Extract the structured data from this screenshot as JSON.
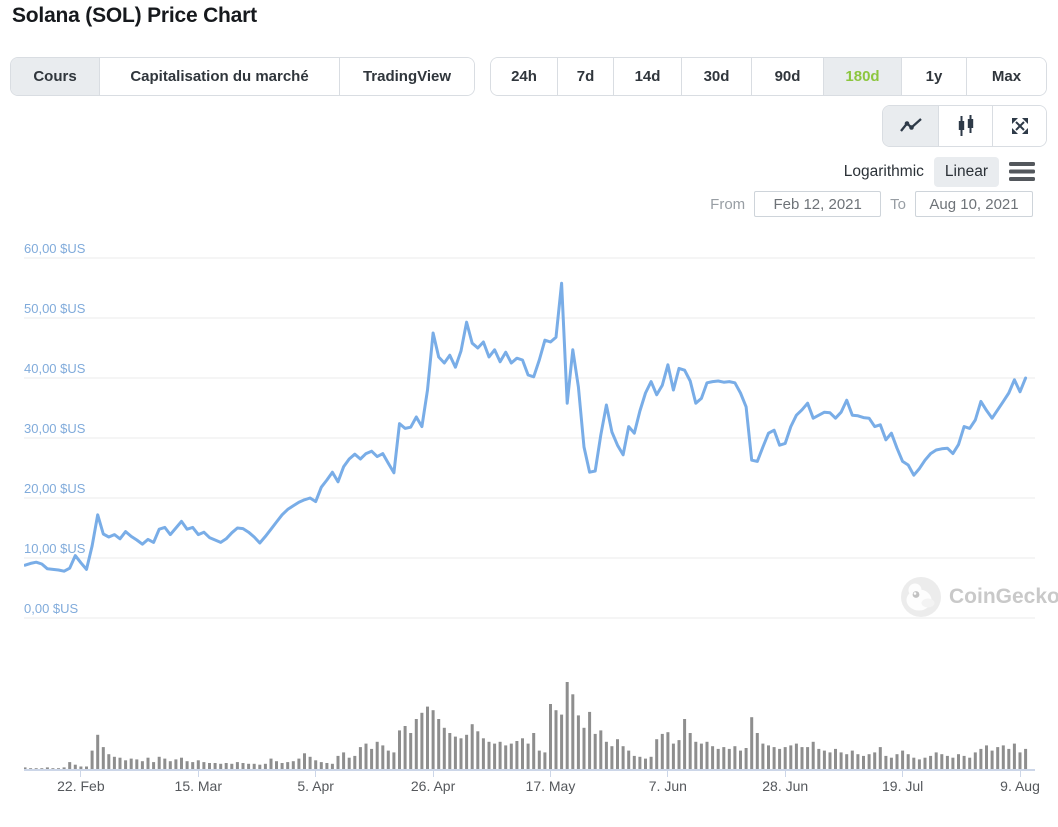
{
  "header": {
    "title": "Solana (SOL) Price Chart"
  },
  "view_tabs": [
    {
      "label": "Cours",
      "active": true
    },
    {
      "label": "Capitalisation du marché",
      "active": false
    },
    {
      "label": "TradingView",
      "active": false
    }
  ],
  "range_tabs": [
    {
      "label": "24h",
      "active": false
    },
    {
      "label": "7d",
      "active": false
    },
    {
      "label": "14d",
      "active": false
    },
    {
      "label": "30d",
      "active": false
    },
    {
      "label": "90d",
      "active": false
    },
    {
      "label": "180d",
      "active": true
    },
    {
      "label": "1y",
      "active": false
    },
    {
      "label": "Max",
      "active": false
    }
  ],
  "chart_type_buttons": [
    {
      "name": "line-chart",
      "active": true
    },
    {
      "name": "candlestick",
      "active": false
    },
    {
      "name": "fullscreen",
      "active": false
    }
  ],
  "scale_toggle": {
    "options": [
      "Logarithmic",
      "Linear"
    ],
    "selected": "Linear"
  },
  "date_range": {
    "from_label": "From",
    "from_value": "Feb 12, 2021",
    "to_label": "To",
    "to_value": "Aug 10, 2021"
  },
  "watermark": {
    "text": "CoinGecko"
  },
  "colors": {
    "price_line": "#79ade7",
    "y_axis_label": "#80abdb",
    "gridline": "#ebebeb",
    "volume_bar": "#8e8e8e",
    "axis_line": "#ccd6e8",
    "active_range_green": "#8cc63f",
    "active_button_bg": "#e9ecef"
  },
  "chart_data": {
    "type": "line",
    "title": "Solana (SOL) Price Chart",
    "x_range": {
      "from": "Feb 12, 2021",
      "to": "Aug 10, 2021",
      "points": 180,
      "unit": "day"
    },
    "y_axis": {
      "min": 0,
      "max": 60,
      "tick_step": 10,
      "unit": "$US",
      "tick_labels_top_to_bottom": [
        "60,00 $US",
        "50,00 $US",
        "40,00 $US",
        "30,00 $US",
        "20,00 $US",
        "10,00 $US",
        "0,00 $US"
      ]
    },
    "x_tick_labels": [
      {
        "day": 10,
        "label": "22. Feb"
      },
      {
        "day": 31,
        "label": "15. Mar"
      },
      {
        "day": 52,
        "label": "5. Apr"
      },
      {
        "day": 73,
        "label": "26. Apr"
      },
      {
        "day": 94,
        "label": "17. May"
      },
      {
        "day": 115,
        "label": "7. Jun"
      },
      {
        "day": 136,
        "label": "28. Jun"
      },
      {
        "day": 157,
        "label": "19. Jul"
      },
      {
        "day": 178,
        "label": "9. Aug"
      }
    ],
    "series": [
      {
        "name": "price_usd",
        "type": "line",
        "color": "#79ade7",
        "values": [
          8.8,
          9.1,
          9.3,
          9.0,
          8.2,
          8.1,
          8.0,
          7.8,
          8.3,
          10.4,
          9.2,
          8.1,
          12.0,
          17.2,
          14.0,
          13.5,
          13.9,
          13.2,
          14.4,
          13.6,
          13.0,
          12.3,
          13.1,
          12.6,
          14.8,
          15.1,
          13.9,
          15.0,
          16.1,
          14.8,
          15.1,
          13.9,
          14.3,
          13.4,
          13.0,
          12.6,
          13.2,
          14.2,
          15.0,
          14.9,
          14.3,
          13.5,
          12.5,
          13.6,
          14.8,
          16.0,
          17.2,
          18.1,
          18.7,
          19.3,
          19.7,
          20.0,
          19.4,
          21.8,
          23.0,
          24.3,
          22.7,
          25.2,
          26.5,
          27.3,
          26.5,
          27.4,
          27.8,
          26.9,
          27.4,
          25.8,
          24.2,
          32.4,
          31.6,
          31.8,
          33.5,
          31.9,
          38.0,
          47.5,
          43.5,
          42.5,
          43.8,
          41.8,
          44.5,
          49.3,
          45.8,
          45.0,
          46.0,
          43.5,
          44.7,
          42.7,
          44.3,
          42.5,
          43.3,
          43.0,
          40.5,
          40.2,
          43.0,
          46.3,
          46.0,
          46.8,
          55.8,
          35.8,
          44.7,
          38.5,
          28.5,
          24.3,
          24.5,
          30.5,
          35.5,
          31.0,
          28.8,
          27.2,
          31.9,
          30.8,
          34.5,
          37.5,
          39.4,
          37.2,
          38.8,
          42.2,
          38.0,
          41.6,
          41.3,
          39.5,
          35.8,
          36.6,
          39.2,
          39.4,
          39.5,
          39.3,
          39.4,
          39.2,
          37.5,
          35.2,
          26.3,
          26.1,
          28.5,
          30.8,
          31.3,
          28.8,
          29.1,
          31.9,
          33.8,
          34.7,
          35.8,
          33.3,
          33.8,
          34.3,
          34.2,
          33.3,
          34.3,
          36.3,
          33.8,
          33.7,
          33.4,
          33.3,
          31.9,
          32.2,
          29.7,
          30.8,
          28.3,
          26.1,
          25.5,
          23.8,
          24.9,
          26.3,
          27.4,
          28.0,
          28.2,
          28.3,
          27.4,
          28.9,
          31.9,
          31.6,
          33.0,
          36.1,
          34.6,
          33.3,
          34.7,
          36.1,
          37.5,
          39.7,
          37.7,
          40.0
        ]
      },
      {
        "name": "volume_relative",
        "type": "bar",
        "color": "#8e8e8e",
        "unit": "percent_of_max",
        "values": [
          3,
          2,
          2,
          2,
          3,
          2,
          2,
          3,
          9,
          6,
          4,
          4,
          22,
          40,
          26,
          18,
          15,
          14,
          11,
          13,
          12,
          10,
          14,
          9,
          15,
          13,
          10,
          12,
          14,
          10,
          9,
          11,
          9,
          8,
          8,
          7,
          8,
          7,
          9,
          8,
          7,
          7,
          6,
          7,
          13,
          10,
          8,
          9,
          10,
          13,
          19,
          15,
          11,
          9,
          8,
          7,
          16,
          20,
          14,
          16,
          26,
          30,
          24,
          32,
          28,
          22,
          20,
          45,
          50,
          42,
          58,
          65,
          72,
          68,
          58,
          48,
          42,
          38,
          36,
          40,
          52,
          44,
          36,
          32,
          30,
          32,
          28,
          30,
          33,
          36,
          30,
          42,
          22,
          20,
          75,
          68,
          63,
          100,
          86,
          62,
          48,
          66,
          41,
          45,
          32,
          27,
          35,
          27,
          22,
          16,
          15,
          13,
          15,
          35,
          41,
          43,
          30,
          34,
          58,
          42,
          32,
          30,
          32,
          27,
          24,
          26,
          24,
          27,
          22,
          25,
          60,
          42,
          30,
          28,
          26,
          24,
          26,
          28,
          30,
          26,
          26,
          32,
          24,
          22,
          20,
          24,
          20,
          18,
          22,
          18,
          16,
          18,
          20,
          26,
          16,
          14,
          18,
          22,
          18,
          14,
          12,
          14,
          16,
          20,
          18,
          16,
          14,
          18,
          16,
          14,
          20,
          24,
          28,
          22,
          26,
          28,
          24,
          30,
          20,
          24
        ]
      }
    ],
    "legend": {
      "visible": false
    },
    "grid": {
      "horizontal": true,
      "vertical": false
    }
  }
}
